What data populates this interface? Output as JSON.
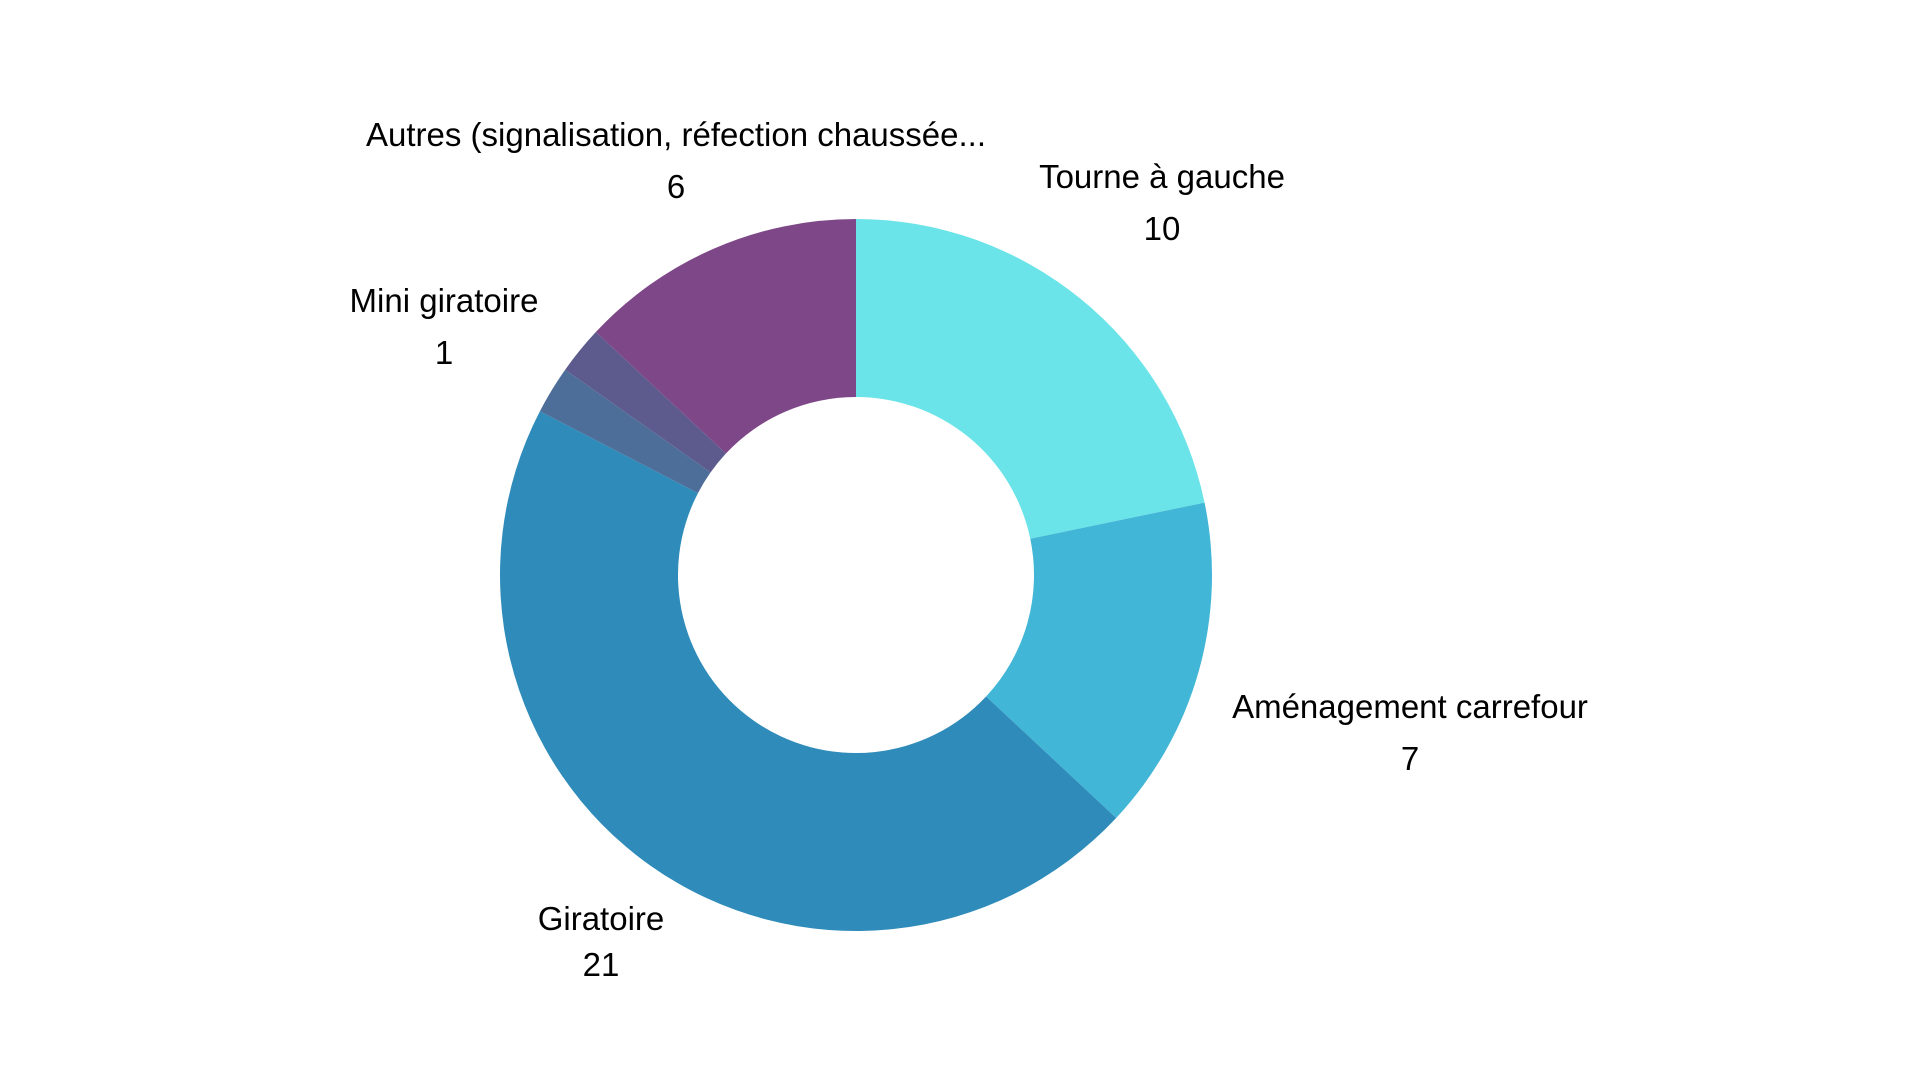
{
  "chart_data": {
    "type": "pie",
    "donut": true,
    "title": "",
    "slices": [
      {
        "label": "Tourne à gauche",
        "value": 10,
        "color": "#6ae4e8"
      },
      {
        "label": "Aménagement carrefour",
        "value": 7,
        "color": "#42b6d6"
      },
      {
        "label": "Giratoire",
        "value": 21,
        "color": "#2e8bba"
      },
      {
        "label": "",
        "value": 1,
        "color": "#4e6e9a"
      },
      {
        "label": "Mini giratoire",
        "value": 1,
        "color": "#5d5b8e"
      },
      {
        "label": "Autres (signalisation, réfection chaussée...",
        "value": 6,
        "color": "#7e4788"
      }
    ],
    "legend": "none"
  }
}
